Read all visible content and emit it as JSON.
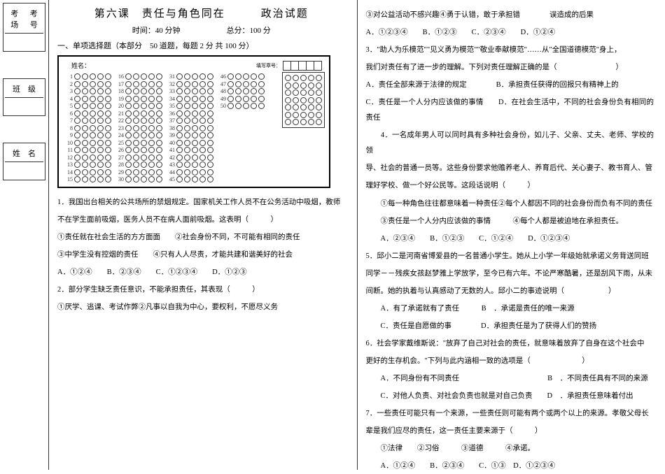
{
  "header": {
    "title": "第六课　责任与角色同在　　　政治试题",
    "time_label": "时间：",
    "time_value": "40 分钟",
    "total_label": "总分：",
    "total_value": "100 分"
  },
  "section1": "一、单项选择题（本部分　50 道题，每题 2 分 共 100 分）",
  "name_prefix": "姓名：",
  "mask_label": "填写章号：",
  "sidebar": {
    "kaochang": [
      "考",
      "考"
    ],
    "kaochang2": [
      "场",
      "号"
    ],
    "banji": "班　级",
    "xingming": "姓　名"
  },
  "bubbles": {
    "col1": [
      1,
      2,
      3,
      4,
      5,
      6,
      7,
      8,
      9,
      10,
      11,
      12,
      13,
      14,
      15
    ],
    "col2": [
      16,
      17,
      18,
      19,
      20,
      21,
      22,
      23,
      24,
      25,
      26,
      27,
      28,
      29,
      30
    ],
    "col3": [
      31,
      32,
      33,
      34,
      35,
      36,
      37,
      38,
      39,
      40,
      41,
      42,
      43,
      44,
      45
    ],
    "col4": [
      46,
      47,
      48,
      49,
      50
    ],
    "mask_rows": 7,
    "options_per_row": 5
  },
  "questions_left": [
    {
      "text": "1．我国出台相关的公共场所的禁烟规定。国家机关工作人员不在公务活动中吸烟，教师"
    },
    {
      "text": "不在学生面前吸烟，医务人员不在病人面前吸烟。这表明（　　　）"
    },
    {
      "text": "①责任就在社会生活的方方面面　　②社会身份不同，不可能有相同的责任"
    },
    {
      "text": "③中学生没有控烟的责任　　④只有人人尽责，才能共建和谐美好的社会"
    },
    {
      "opts": "A．①②④　　B．②③④　　C．①②③④　　D．①②③"
    },
    {
      "text": "2．部分学生缺乏责任意识，不能承担责任，其表现（　　　）"
    },
    {
      "text": "①厌学、逃课、考试作弊②凡事以自我为中心，要权利，不愿尽义务"
    }
  ],
  "questions_right": [
    {
      "text": "③对公益活动不感兴趣④勇于认错，敢于承担错　　　　误造成的后果"
    },
    {
      "opts": "A．①②③④　　B．①②③　　C．②③④　　D．①②④"
    },
    {
      "text": "3．\"助人为乐模范\"\"见义勇为模范\"\"敬业奉献模范\"……从\"全国道德模范\"身上，"
    },
    {
      "text": "我们对责任有了进一步的理解。下列对责任理解正确的是（　　　　　　　　）"
    },
    {
      "text": "A．责任全部来源于法律的规定　　　　B．承担责任获得的回报只有精神上的"
    },
    {
      "text": "C．责任是一个人分内应该做的事情　　D．在社会生活中，不同的社会身份负有相同的责任"
    },
    {
      "text": "　　4．一名成年男人可以同时具有多种社会身份，如儿子、父亲、丈夫、老师、学校的领"
    },
    {
      "text": "导、社会的普通一员等。这些身份要求他赡养老人、养育后代、关心妻子、教书育人、管"
    },
    {
      "text": "理好学校、做一个好公民等。这段话说明（　　　）"
    },
    {
      "text": "　　①每一种角色往往都意味着一种责任②每个人都因不同的社会身份而负有不同的责任"
    },
    {
      "text": "　　③责任是一个人分内应该做的事情　　　④每个人都是被迫地在承担责任。"
    },
    {
      "opts": "　　A．②③④　　B．①②③　　C．①②④　　D．①②③④"
    },
    {
      "text": "5．邱小二是河南省博爱县的一名普通小学生。她从上小学一年级始就承诺义务背送同班"
    },
    {
      "text": "同学－－残疾女孩赵梦雅上学放学，至今已有六年。不论严寒酷暑，还是刮风下雨，从未"
    },
    {
      "text": "间断。她的执着与认真感动了无数的人。邱小二的事迹说明（　　　　　　）"
    },
    {
      "text": "　　A．有了承诺就有了责任　　　B　．承诺是责任的唯一来源"
    },
    {
      "text": "　　C．责任是自愿做的事　　　　D．承担责任是为了获得人们的赞扬"
    },
    {
      "text": "6．社会学家戴维斯说：\"放弃了自己对社会的责任，就意味着放弃了自身在这个社会中"
    },
    {
      "text": "更好的生存机会。\"下列与此内涵相一致的选项是（　　　　　　　）"
    },
    {
      "text": "　　A．不同身份有不同责任　　　　　　　　　　　　B　．不同责任具有不同的来源"
    },
    {
      "text": "　　C．对他人负责、对社会负责也就是对自己负责　　D　．承担责任意味着付出"
    },
    {
      "text": "7．一些责任可能只有一个来源，一些责任则可能有两个或两个以上的来源。孝敬父母长"
    },
    {
      "text": "辈是我们应尽的责任，这一责任主要来源于（　　　）"
    },
    {
      "text": "　　①法律　　②习俗　　　③道德　　　④承诺。"
    },
    {
      "opts": "　　A．①②④　　B．②③④　　C．①③　D．①②③④"
    }
  ]
}
